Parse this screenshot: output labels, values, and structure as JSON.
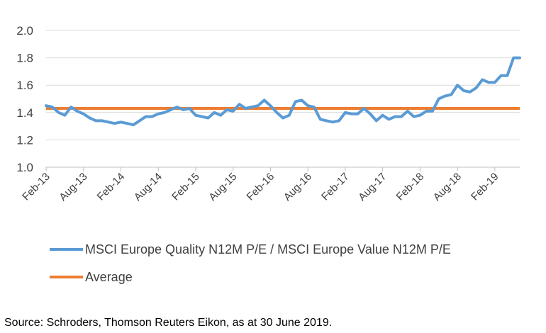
{
  "chart_data": {
    "type": "line",
    "title": "",
    "xlabel": "",
    "ylabel": "",
    "ylim": [
      1.0,
      2.0
    ],
    "y_ticks": [
      "1.0",
      "1.2",
      "1.4",
      "1.6",
      "1.8",
      "2.0"
    ],
    "x_tick_labels": [
      "Feb-13",
      "Aug-13",
      "Feb-14",
      "Aug-14",
      "Feb-15",
      "Aug-15",
      "Feb-16",
      "Aug-16",
      "Feb-17",
      "Aug-17",
      "Feb-18",
      "Aug-18",
      "Feb-19"
    ],
    "x_start": "Feb-13",
    "x_end": "Jun-19",
    "grid": "horizontal",
    "legend_position": "bottom",
    "series": [
      {
        "name": "MSCI Europe Quality N12M P/E / MSCI Europe Value N12M P/E",
        "color": "#5B9BD5",
        "values": [
          1.45,
          1.44,
          1.4,
          1.38,
          1.44,
          1.41,
          1.39,
          1.36,
          1.34,
          1.34,
          1.33,
          1.32,
          1.33,
          1.32,
          1.31,
          1.34,
          1.37,
          1.37,
          1.39,
          1.4,
          1.42,
          1.44,
          1.42,
          1.43,
          1.38,
          1.37,
          1.36,
          1.4,
          1.38,
          1.42,
          1.41,
          1.46,
          1.43,
          1.44,
          1.45,
          1.49,
          1.45,
          1.4,
          1.36,
          1.38,
          1.48,
          1.49,
          1.45,
          1.44,
          1.35,
          1.34,
          1.33,
          1.34,
          1.4,
          1.39,
          1.39,
          1.43,
          1.39,
          1.34,
          1.38,
          1.35,
          1.37,
          1.37,
          1.41,
          1.37,
          1.38,
          1.41,
          1.41,
          1.5,
          1.52,
          1.53,
          1.6,
          1.56,
          1.55,
          1.58,
          1.64,
          1.62,
          1.62,
          1.67,
          1.67,
          1.8,
          1.8
        ]
      },
      {
        "name": "Average",
        "color": "#ED7D31",
        "values": [
          1.43,
          1.43
        ]
      }
    ]
  },
  "source": "Source: Schroders, Thomson Reuters Eikon, as at 30 June 2019."
}
